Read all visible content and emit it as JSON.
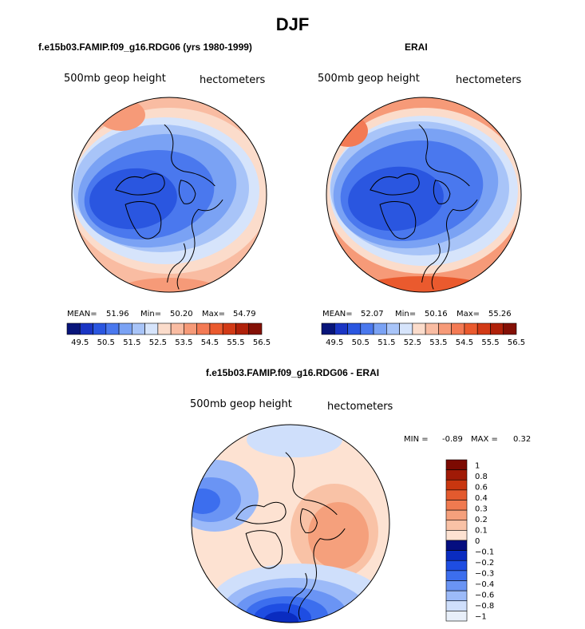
{
  "page_title": "DJF",
  "colors": {
    "blues": [
      "#08157a",
      "#1a35c4",
      "#2a56e0",
      "#4a78ee",
      "#7aa2f4",
      "#a8c4f8",
      "#d6e4fb"
    ],
    "reds": [
      "#fbdccb",
      "#f9bca2",
      "#f69a78",
      "#f37a54",
      "#ea5a2e",
      "#d23a16",
      "#b0210a",
      "#841006"
    ],
    "diff_blues": [
      "#050e80",
      "#0a2cc0",
      "#1e4de2",
      "#3c6eee",
      "#6a94f4",
      "#9cbaf8",
      "#cfdffb",
      "#e8eff9"
    ],
    "diff_reds": [
      "#fde2d2",
      "#f9c2a6",
      "#f5a07c",
      "#f07a50",
      "#e35a2e",
      "#c8360f",
      "#a01a06",
      "#7c0a02"
    ],
    "land_outline": "#000000"
  },
  "chart_data": [
    {
      "type": "heatmap",
      "title": "f.e15b03.FAMIP.f09_g16.RDG06 (yrs 1980-1999)",
      "left_label": "500mb geop height",
      "right_label": "hectometers",
      "stats": {
        "mean_label": "MEAN=",
        "mean": "51.96",
        "min_label": "Min=",
        "min": "50.20",
        "max_label": "Max=",
        "max": "54.79"
      },
      "colorbar_levels": [
        49.5,
        50,
        50.5,
        51,
        51.5,
        52,
        52.5,
        53,
        53.5,
        54,
        54.5,
        55,
        55.5,
        56,
        56.5
      ],
      "colorbar_tick_labels": [
        "49.5",
        "50.5",
        "51.5",
        "52.5",
        "53.5",
        "54.5",
        "55.5",
        "56.5"
      ]
    },
    {
      "type": "heatmap",
      "title": "ERAI",
      "left_label": "500mb geop height",
      "right_label": "hectometers",
      "stats": {
        "mean_label": "MEAN=",
        "mean": "52.07",
        "min_label": "Min=",
        "min": "50.16",
        "max_label": "Max=",
        "max": "55.26"
      },
      "colorbar_levels": [
        49.5,
        50,
        50.5,
        51,
        51.5,
        52,
        52.5,
        53,
        53.5,
        54,
        54.5,
        55,
        55.5,
        56,
        56.5
      ],
      "colorbar_tick_labels": [
        "49.5",
        "50.5",
        "51.5",
        "52.5",
        "53.5",
        "54.5",
        "55.5",
        "56.5"
      ]
    },
    {
      "type": "heatmap",
      "title": "f.e15b03.FAMIP.f09_g16.RDG06 - ERAI",
      "left_label": "500mb geop height",
      "right_label": "hectometers",
      "stats": {
        "min_label": "MIN =",
        "min": "-0.89",
        "max_label": "MAX =",
        "max": "0.32"
      },
      "colorbar_levels": [
        -1,
        -0.8,
        -0.6,
        -0.4,
        -0.3,
        -0.2,
        -0.1,
        0,
        0.1,
        0.2,
        0.3,
        0.4,
        0.6,
        0.8,
        1
      ],
      "colorbar_tick_labels": [
        "1",
        "0.8",
        "0.6",
        "0.4",
        "0.3",
        "0.2",
        "0.1",
        "0",
        "−0.1",
        "−0.2",
        "−0.3",
        "−0.4",
        "−0.6",
        "−0.8",
        "−1"
      ]
    }
  ]
}
